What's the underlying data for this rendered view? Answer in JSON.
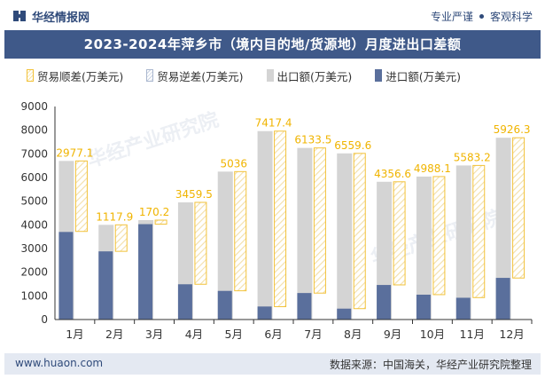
{
  "header": {
    "brand": "华经情报网",
    "tagline_left": "专业严谨",
    "tagline_right": "客观科学"
  },
  "footer": {
    "site": "www.huaon.com",
    "source": "数据来源：中国海关，华经产业研究院整理"
  },
  "watermark": {
    "text": "华经产业研究院"
  },
  "colors": {
    "title_band": "#3f5989",
    "export": "#d4d4d4",
    "import": "#5a6f9c",
    "surplus_border": "#f2c23a",
    "deficit_border": "#aab7cf",
    "label": "#f0b400"
  },
  "chart_data": {
    "type": "bar",
    "title": "2023-2024年萍乡市（境内目的地/货源地）月度进出口差额",
    "xlabel": "",
    "ylabel": "",
    "ylim": [
      0,
      9000
    ],
    "yticks": [
      0,
      1000,
      2000,
      3000,
      4000,
      5000,
      6000,
      7000,
      8000,
      9000
    ],
    "grid": false,
    "legend_position": "top",
    "categories": [
      "1月",
      "2月",
      "3月",
      "4月",
      "5月",
      "6月",
      "7月",
      "8月",
      "9月",
      "10月",
      "11月",
      "12月"
    ],
    "series": [
      {
        "name": "贸易顺差(万美元)",
        "values": [
          2977.1,
          1117.9,
          170.2,
          3459.5,
          5036,
          7417.4,
          6133.5,
          6559.6,
          4356.6,
          4988.1,
          5583.2,
          5926.3
        ]
      },
      {
        "name": "贸易逆差(万美元)",
        "values": [
          0,
          0,
          0,
          0,
          0,
          0,
          0,
          0,
          0,
          0,
          0,
          0
        ]
      },
      {
        "name": "出口额(万美元)",
        "values": [
          6700,
          4000,
          4200,
          4950,
          6250,
          7960,
          7250,
          7020,
          5820,
          6040,
          6510,
          7680
        ]
      },
      {
        "name": "进口额(万美元)",
        "values": [
          3700,
          2880,
          4030,
          1490,
          1210,
          550,
          1120,
          460,
          1460,
          1050,
          920,
          1760
        ]
      }
    ],
    "data_labels": [
      "2977.1",
      "1117.9",
      "170.2",
      "3459.5",
      "5036",
      "7417.4",
      "6133.5",
      "6559.6",
      "4356.6",
      "4988.1",
      "5583.2",
      "5926.3"
    ]
  }
}
